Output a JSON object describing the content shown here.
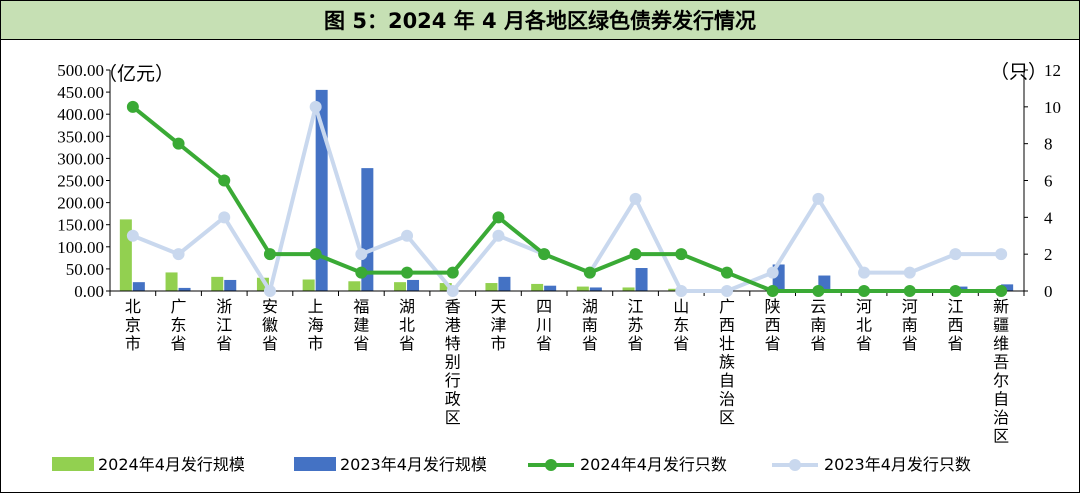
{
  "chart_data": {
    "type": "bar",
    "title": "图 5：2024 年 4 月各地区绿色债券发行情况",
    "y_left_unit": "（亿元）",
    "y_right_unit": "（只）",
    "y_left_ticks": [
      "0.00",
      "50.00",
      "100.00",
      "150.00",
      "200.00",
      "250.00",
      "300.00",
      "350.00",
      "400.00",
      "450.00",
      "500.00"
    ],
    "y_right_ticks": [
      "0",
      "2",
      "4",
      "6",
      "8",
      "10",
      "12"
    ],
    "ylim_left": [
      0,
      500
    ],
    "ylim_right": [
      0,
      12
    ],
    "categories": [
      "北京市",
      "广东省",
      "浙江省",
      "安徽省",
      "上海市",
      "福建省",
      "湖北省",
      "香港特别行政区",
      "天津市",
      "四川省",
      "湖南省",
      "江苏省",
      "山东省",
      "广西壮族自治区",
      "陕西省",
      "云南省",
      "河北省",
      "河南省",
      "江西省",
      "新疆维吾尔自治区"
    ],
    "series": [
      {
        "name": "2024年4月发行规模",
        "kind": "bar",
        "axis": "left",
        "color": "#92d050",
        "values": [
          162,
          42,
          32,
          30,
          26,
          22,
          20,
          18,
          18,
          16,
          10,
          8,
          5,
          0,
          0,
          0,
          0,
          0,
          0,
          0
        ]
      },
      {
        "name": "2023年4月发行规模",
        "kind": "bar",
        "axis": "left",
        "color": "#4472c4",
        "values": [
          20,
          7,
          25,
          0,
          455,
          278,
          25,
          0,
          32,
          12,
          8,
          52,
          0,
          0,
          60,
          35,
          0,
          0,
          10,
          15
        ]
      },
      {
        "name": "2024年4月发行只数",
        "kind": "line",
        "axis": "right",
        "color": "#3aaa35",
        "values": [
          10,
          8,
          6,
          2,
          2,
          1,
          1,
          1,
          4,
          2,
          1,
          2,
          2,
          1,
          0,
          0,
          0,
          0,
          0,
          0
        ]
      },
      {
        "name": "2023年4月发行只数",
        "kind": "line",
        "axis": "right",
        "color": "#c9d8ee",
        "values": [
          3,
          2,
          4,
          0,
          10,
          2,
          3,
          0,
          3,
          2,
          1,
          5,
          0,
          0,
          1,
          5,
          1,
          1,
          2,
          2
        ]
      }
    ],
    "legend_position": "bottom",
    "grid": false
  }
}
